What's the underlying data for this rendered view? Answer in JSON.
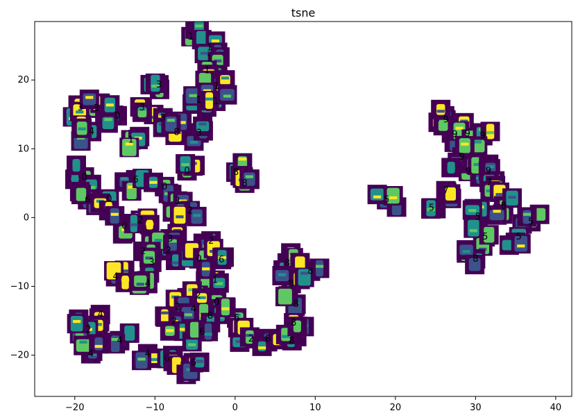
{
  "chart_data": {
    "type": "scatter",
    "title": "tsne",
    "xlabel": "",
    "ylabel": "",
    "xlim": [
      -25,
      42
    ],
    "ylim": [
      -26,
      28.5
    ],
    "xticks": [
      -20,
      -10,
      0,
      10,
      20,
      30,
      40
    ],
    "yticks": [
      -20,
      -10,
      0,
      10,
      20
    ],
    "grid": false,
    "marker": "image-thumbnail",
    "thumbnail_colormap": [
      "#440154",
      "#3b528b",
      "#21918c",
      "#5ec962",
      "#fde725"
    ],
    "points": [
      {
        "x": -5.5,
        "y": 26.3,
        "label": "1"
      },
      {
        "x": -3.2,
        "y": 24.7,
        "label": "1"
      },
      {
        "x": -3.2,
        "y": 23.1,
        "label": "1"
      },
      {
        "x": -3.5,
        "y": 21.4,
        "label": "1"
      },
      {
        "x": -2.3,
        "y": 19.1,
        "label": "1"
      },
      {
        "x": -4.5,
        "y": 17.1,
        "label": "1"
      },
      {
        "x": -2.4,
        "y": 16.9,
        "label": "1"
      },
      {
        "x": -9.5,
        "y": 19.3,
        "label": "3"
      },
      {
        "x": -19.3,
        "y": 16.0,
        "label": "3"
      },
      {
        "x": -17.3,
        "y": 15.9,
        "label": "3"
      },
      {
        "x": -14.7,
        "y": 14.8,
        "label": "0"
      },
      {
        "x": -11.6,
        "y": 16.0,
        "label": "3"
      },
      {
        "x": -9.0,
        "y": 14.5,
        "label": "3"
      },
      {
        "x": -7.3,
        "y": 12.4,
        "label": "8"
      },
      {
        "x": -4.5,
        "y": 12.3,
        "label": "3"
      },
      {
        "x": -17.9,
        "y": 12.5,
        "label": "4"
      },
      {
        "x": -13.0,
        "y": 11.3,
        "label": "1"
      },
      {
        "x": -6.0,
        "y": 6.8,
        "label": "0"
      },
      {
        "x": -18.8,
        "y": 5.9,
        "label": "0"
      },
      {
        "x": -12.4,
        "y": 5.5,
        "label": "6"
      },
      {
        "x": -8.8,
        "y": 4.5,
        "label": "0"
      },
      {
        "x": -18.4,
        "y": 2.6,
        "label": "6"
      },
      {
        "x": -15.7,
        "y": 2.7,
        "label": "0"
      },
      {
        "x": -7.2,
        "y": 2.4,
        "label": "3"
      },
      {
        "x": -5.6,
        "y": 1.0,
        "label": "2"
      },
      {
        "x": -13.8,
        "y": -1.2,
        "label": "0"
      },
      {
        "x": -11.8,
        "y": -0.4,
        "label": "2"
      },
      {
        "x": -8.1,
        "y": -3.1,
        "label": "3"
      },
      {
        "x": -3.0,
        "y": -3.4,
        "label": "2"
      },
      {
        "x": -11.5,
        "y": -4.9,
        "label": "2"
      },
      {
        "x": -8.3,
        "y": -4.8,
        "label": "2"
      },
      {
        "x": -10.4,
        "y": -6.5,
        "label": "3"
      },
      {
        "x": -4.5,
        "y": -6.0,
        "label": "0"
      },
      {
        "x": -1.7,
        "y": -6.1,
        "label": "6"
      },
      {
        "x": -14.9,
        "y": -8.6,
        "label": "4"
      },
      {
        "x": -10.9,
        "y": -9.6,
        "label": "4"
      },
      {
        "x": -2.5,
        "y": -9.1,
        "label": "1"
      },
      {
        "x": -4.6,
        "y": -11.3,
        "label": "2"
      },
      {
        "x": -2.3,
        "y": -12.3,
        "label": "0"
      },
      {
        "x": -7.2,
        "y": -13.0,
        "label": "2"
      },
      {
        "x": -5.2,
        "y": -13.3,
        "label": "4"
      },
      {
        "x": -3.1,
        "y": -14.3,
        "label": "8"
      },
      {
        "x": -16.8,
        "y": -14.1,
        "label": "4"
      },
      {
        "x": -7.6,
        "y": -15.1,
        "label": "2"
      },
      {
        "x": -18.3,
        "y": -16.3,
        "label": "2"
      },
      {
        "x": -14.4,
        "y": -17.9,
        "label": "4"
      },
      {
        "x": -4.1,
        "y": -16.6,
        "label": "6"
      },
      {
        "x": 0.2,
        "y": -14.6,
        "label": "6"
      },
      {
        "x": 2.0,
        "y": -17.6,
        "label": "2"
      },
      {
        "x": 4.1,
        "y": -17.6,
        "label": "8"
      },
      {
        "x": 7.1,
        "y": -17.9,
        "label": "8"
      },
      {
        "x": -18.0,
        "y": -19.8,
        "label": "4"
      },
      {
        "x": -10.9,
        "y": -19.8,
        "label": "4"
      },
      {
        "x": -8.5,
        "y": -20.5,
        "label": "6"
      },
      {
        "x": -5.2,
        "y": -21.1,
        "label": "6"
      },
      {
        "x": 0.1,
        "y": 6.6,
        "label": "8"
      },
      {
        "x": 1.2,
        "y": 5.0,
        "label": "8"
      },
      {
        "x": 6.5,
        "y": -6.6,
        "label": "8"
      },
      {
        "x": 7.0,
        "y": -9.6,
        "label": "8"
      },
      {
        "x": 9.4,
        "y": -7.8,
        "label": "8"
      },
      {
        "x": 7.6,
        "y": -12.6,
        "label": "8"
      },
      {
        "x": 7.3,
        "y": -15.3,
        "label": "8"
      },
      {
        "x": 26.3,
        "y": 14.2,
        "label": "9"
      },
      {
        "x": 27.4,
        "y": 12.1,
        "label": "9"
      },
      {
        "x": 29.0,
        "y": 12.2,
        "label": "9"
      },
      {
        "x": 30.9,
        "y": 11.9,
        "label": "9"
      },
      {
        "x": 28.3,
        "y": 8.8,
        "label": "9"
      },
      {
        "x": 29.1,
        "y": 6.7,
        "label": "9"
      },
      {
        "x": 31.6,
        "y": 6.8,
        "label": "9"
      },
      {
        "x": 31.7,
        "y": 5.1,
        "label": "7"
      },
      {
        "x": 26.3,
        "y": 3.9,
        "label": "7"
      },
      {
        "x": 18.9,
        "y": 2.6,
        "label": "5"
      },
      {
        "x": 24.5,
        "y": 1.4,
        "label": "5"
      },
      {
        "x": 30.3,
        "y": 0.1,
        "label": "5"
      },
      {
        "x": 33.5,
        "y": 1.7,
        "label": "8"
      },
      {
        "x": 31.2,
        "y": -2.8,
        "label": "5"
      },
      {
        "x": 36.9,
        "y": -0.6,
        "label": "5"
      },
      {
        "x": 30.0,
        "y": -6.0,
        "label": "8"
      },
      {
        "x": 35.4,
        "y": -2.8,
        "label": "5"
      }
    ]
  }
}
